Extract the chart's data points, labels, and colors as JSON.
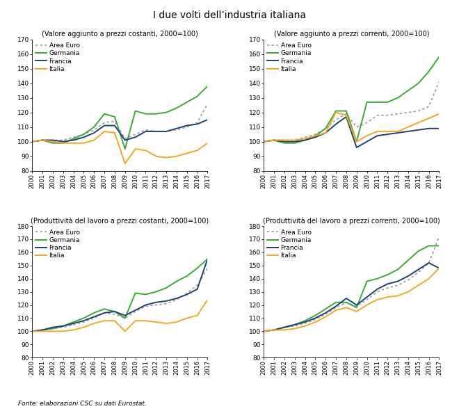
{
  "title": "I due volti dell’industria italiana",
  "footnote": "Fonte: elaborazioni CSC su dati Eurostat.",
  "years": [
    2000,
    2001,
    2002,
    2003,
    2004,
    2005,
    2006,
    2007,
    2008,
    2009,
    2010,
    2011,
    2012,
    2013,
    2014,
    2015,
    2016,
    2017
  ],
  "panels": [
    {
      "title": "(Valore aggiunto a prezzi costanti, 2000=100)",
      "ylim": [
        80,
        170
      ],
      "yticks": [
        80,
        90,
        100,
        110,
        120,
        130,
        140,
        150,
        160,
        170
      ],
      "series": {
        "area_euro": [
          100,
          101,
          101,
          101,
          103,
          105,
          108,
          113,
          114,
          102,
          105,
          108,
          107,
          107,
          108,
          110,
          113,
          126
        ],
        "germania": [
          100,
          101,
          99,
          99,
          102,
          105,
          110,
          119,
          117,
          95,
          121,
          119,
          119,
          120,
          123,
          127,
          131,
          138
        ],
        "francia": [
          100,
          101,
          101,
          100,
          101,
          103,
          106,
          111,
          111,
          101,
          103,
          107,
          107,
          107,
          109,
          111,
          112,
          115
        ],
        "italia": [
          100,
          101,
          100,
          99,
          99,
          99,
          101,
          107,
          106,
          85,
          95,
          94,
          90,
          89,
          90,
          92,
          94,
          99
        ]
      }
    },
    {
      "title": "(Valore aggiunto a prezzi correnti, 2000=100)",
      "ylim": [
        80,
        170
      ],
      "yticks": [
        80,
        90,
        100,
        110,
        120,
        130,
        140,
        150,
        160,
        170
      ],
      "series": {
        "area_euro": [
          100,
          101,
          101,
          101,
          103,
          105,
          109,
          115,
          119,
          110,
          113,
          118,
          118,
          119,
          120,
          121,
          124,
          141
        ],
        "germania": [
          100,
          101,
          99,
          99,
          101,
          104,
          109,
          121,
          121,
          100,
          127,
          127,
          127,
          130,
          135,
          140,
          148,
          158
        ],
        "francia": [
          100,
          101,
          100,
          100,
          101,
          103,
          106,
          112,
          117,
          96,
          100,
          104,
          105,
          106,
          107,
          108,
          109,
          109
        ],
        "italia": [
          100,
          101,
          101,
          101,
          102,
          104,
          106,
          120,
          118,
          100,
          104,
          107,
          107,
          107,
          110,
          113,
          116,
          119
        ]
      }
    },
    {
      "title": "(Produttività del lavoro a prezzi costanti, 2000=100)",
      "ylim": [
        80,
        180
      ],
      "yticks": [
        80,
        90,
        100,
        110,
        120,
        130,
        140,
        150,
        160,
        170,
        180
      ],
      "series": {
        "area_euro": [
          100,
          101,
          102,
          103,
          105,
          107,
          110,
          114,
          113,
          110,
          115,
          119,
          120,
          121,
          124,
          129,
          135,
          148
        ],
        "germania": [
          100,
          101,
          102,
          104,
          107,
          110,
          114,
          117,
          115,
          110,
          129,
          128,
          130,
          133,
          138,
          142,
          148,
          155
        ],
        "francia": [
          100,
          101,
          103,
          104,
          106,
          108,
          111,
          114,
          115,
          112,
          116,
          120,
          122,
          123,
          125,
          128,
          132,
          155
        ],
        "italia": [
          100,
          100,
          100,
          100,
          101,
          103,
          106,
          108,
          108,
          100,
          108,
          108,
          107,
          106,
          107,
          110,
          112,
          124
        ]
      }
    },
    {
      "title": "(Produttività del lavoro a prezzi correnti, 2000=100)",
      "ylim": [
        80,
        180
      ],
      "yticks": [
        80,
        90,
        100,
        110,
        120,
        130,
        140,
        150,
        160,
        170,
        180
      ],
      "series": {
        "area_euro": [
          100,
          101,
          103,
          104,
          106,
          109,
          113,
          118,
          122,
          119,
          124,
          130,
          133,
          135,
          139,
          145,
          152,
          172
        ],
        "germania": [
          100,
          101,
          103,
          105,
          108,
          112,
          117,
          122,
          122,
          118,
          138,
          140,
          143,
          147,
          154,
          161,
          165,
          165
        ],
        "francia": [
          100,
          101,
          103,
          105,
          107,
          110,
          114,
          119,
          125,
          120,
          126,
          132,
          136,
          138,
          142,
          147,
          152,
          148
        ],
        "italia": [
          100,
          101,
          101,
          102,
          104,
          107,
          111,
          116,
          118,
          115,
          120,
          124,
          126,
          127,
          130,
          135,
          140,
          148
        ]
      }
    }
  ],
  "colors": {
    "area_euro": "#999999",
    "germania": "#3aaa35",
    "francia": "#1f3f7a",
    "italia": "#f5a623"
  },
  "legend_labels": {
    "area_euro": "Area Euro",
    "germania": "Germania",
    "francia": "Francia",
    "italia": "Italia"
  },
  "figsize": [
    6.6,
    5.91
  ],
  "dpi": 100
}
